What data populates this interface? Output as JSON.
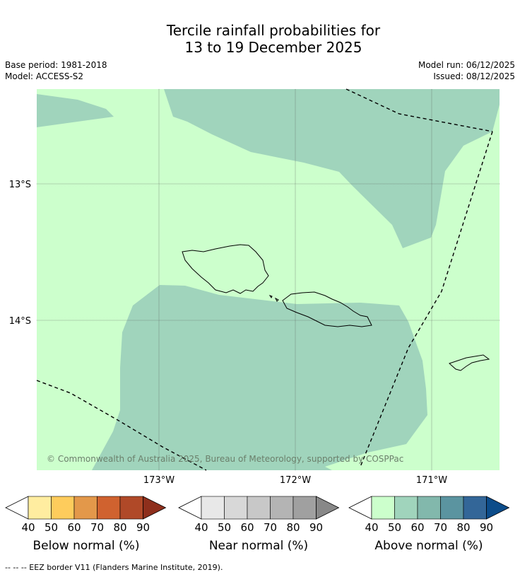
{
  "title_line1": "Tercile rainfall probabilities for",
  "title_line2": "13 to 19 December 2025",
  "meta": {
    "base_period": "Base period: 1981-2018",
    "model": "Model: ACCESS-S2",
    "model_run": "Model run: 06/12/2025",
    "issued": "Issued: 08/12/2025"
  },
  "map": {
    "lat_labels": [
      "13°S",
      "14°S"
    ],
    "lon_labels": [
      "173°W",
      "172°W",
      "171°W"
    ],
    "copyright": "© Commonwealth of Australia 2025, Bureau of Meteorology, supported by COSPPac",
    "colors": {
      "above_40_50": "#ccffcc",
      "above_50_60": "#a0d4bc",
      "land_outline": "#000000"
    }
  },
  "colorbars": [
    {
      "name": "below",
      "label": "Below normal (%)",
      "ticks": [
        "40",
        "50",
        "60",
        "70",
        "80",
        "90"
      ],
      "colors": [
        "#ffeda0",
        "#fecc5c",
        "#e3984a",
        "#d0622f",
        "#b04928",
        "#8e2f1c"
      ]
    },
    {
      "name": "near",
      "label": "Near normal (%)",
      "ticks": [
        "40",
        "50",
        "60",
        "70",
        "80",
        "90"
      ],
      "colors": [
        "#e8e8e8",
        "#d8d8d8",
        "#c8c8c8",
        "#b4b4b4",
        "#a0a0a0",
        "#888888"
      ]
    },
    {
      "name": "above",
      "label": "Above normal (%)",
      "ticks": [
        "40",
        "50",
        "60",
        "70",
        "80",
        "90"
      ],
      "colors": [
        "#ccffcc",
        "#a0d4bc",
        "#82b8ac",
        "#5b94a0",
        "#336698",
        "#0c4c8a"
      ]
    }
  ],
  "footnote": "--  --  -- EEZ border V11 (Flanders Marine Institute, 2019)."
}
